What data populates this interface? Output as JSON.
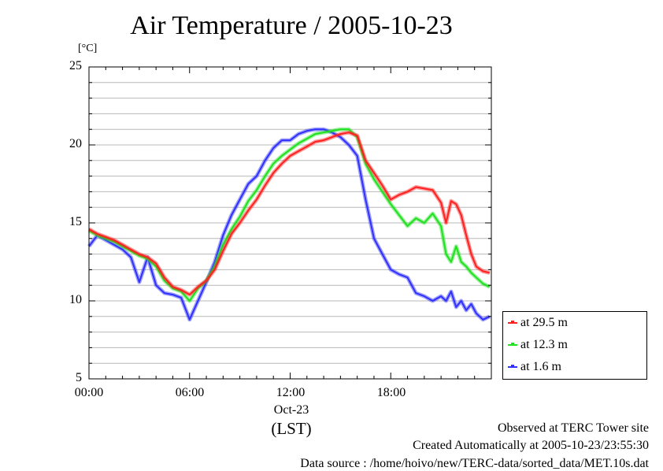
{
  "chart_data": {
    "type": "line",
    "title": "Air Temperature / 2005-10-23",
    "ylabel": "[°C]",
    "xlabel": "(LST)",
    "x_date_label": "Oct-23",
    "ylim": [
      5,
      25
    ],
    "yticks": [
      "25",
      "20",
      "15",
      "10",
      "5"
    ],
    "xlim": [
      0,
      24
    ],
    "xticks": [
      "00:00",
      "06:00",
      "12:00",
      "18:00"
    ],
    "grid": true,
    "legend_position": "bottom-right-outside",
    "series": [
      {
        "name": "at 29.5 m",
        "color": "#ff2020",
        "x": [
          0,
          0.5,
          1,
          1.5,
          2,
          2.5,
          3,
          3.5,
          4,
          4.5,
          5,
          5.5,
          6,
          6.5,
          7,
          7.5,
          8,
          8.5,
          9,
          9.5,
          10,
          10.5,
          11,
          11.5,
          12,
          12.5,
          13,
          13.5,
          14,
          14.5,
          15,
          15.5,
          16,
          16.5,
          17,
          17.5,
          18,
          18.5,
          19,
          19.5,
          20,
          20.5,
          21,
          21.3,
          21.6,
          21.9,
          22.2,
          22.5,
          22.8,
          23.1,
          23.5,
          23.9
        ],
        "y": [
          14.6,
          14.3,
          14.1,
          13.9,
          13.6,
          13.3,
          13.0,
          12.8,
          12.4,
          11.5,
          10.9,
          10.7,
          10.4,
          10.9,
          11.3,
          12.0,
          13.2,
          14.3,
          15.0,
          15.8,
          16.5,
          17.4,
          18.2,
          18.8,
          19.3,
          19.6,
          19.9,
          20.2,
          20.3,
          20.5,
          20.7,
          20.8,
          20.6,
          19.0,
          18.2,
          17.4,
          16.5,
          16.8,
          17.0,
          17.3,
          17.2,
          17.1,
          16.3,
          15.0,
          16.4,
          16.2,
          15.5,
          14.2,
          13.0,
          12.2,
          11.9,
          11.8
        ]
      },
      {
        "name": "at 12.3 m",
        "color": "#20e020",
        "x": [
          0,
          0.5,
          1,
          1.5,
          2,
          2.5,
          3,
          3.5,
          4,
          4.5,
          5,
          5.5,
          6,
          6.5,
          7,
          7.5,
          8,
          8.5,
          9,
          9.5,
          10,
          10.5,
          11,
          11.5,
          12,
          12.5,
          13,
          13.5,
          14,
          14.5,
          15,
          15.5,
          16,
          16.5,
          17,
          17.5,
          18,
          18.5,
          19,
          19.5,
          20,
          20.5,
          21,
          21.3,
          21.6,
          21.9,
          22.2,
          22.5,
          22.8,
          23.1,
          23.5,
          23.9
        ],
        "y": [
          14.5,
          14.2,
          14.0,
          13.8,
          13.5,
          13.2,
          12.9,
          12.7,
          12.2,
          11.3,
          10.8,
          10.6,
          10.0,
          10.8,
          11.3,
          12.2,
          13.6,
          14.6,
          15.4,
          16.4,
          17.1,
          18.0,
          18.8,
          19.3,
          19.7,
          20.1,
          20.4,
          20.7,
          20.8,
          20.9,
          21.0,
          21.0,
          20.5,
          18.8,
          17.8,
          17.0,
          16.2,
          15.5,
          14.8,
          15.3,
          15.0,
          15.6,
          14.8,
          13.0,
          12.5,
          13.5,
          12.5,
          12.2,
          11.8,
          11.5,
          11.1,
          10.9
        ]
      },
      {
        "name": "at 1.6 m",
        "color": "#3030ff",
        "x": [
          0,
          0.5,
          1,
          1.5,
          2,
          2.5,
          3,
          3.5,
          4,
          4.5,
          5,
          5.5,
          6,
          6.5,
          7,
          7.5,
          8,
          8.5,
          9,
          9.5,
          10,
          10.5,
          11,
          11.5,
          12,
          12.5,
          13,
          13.5,
          14,
          14.5,
          15,
          15.5,
          16,
          16.5,
          17,
          17.5,
          18,
          18.5,
          19,
          19.5,
          20,
          20.5,
          21,
          21.3,
          21.6,
          21.9,
          22.2,
          22.5,
          22.8,
          23.1,
          23.5,
          23.9
        ],
        "y": [
          13.5,
          14.2,
          13.9,
          13.6,
          13.3,
          12.8,
          11.2,
          12.8,
          11.0,
          10.5,
          10.4,
          10.2,
          8.8,
          10.0,
          11.2,
          12.5,
          14.2,
          15.5,
          16.5,
          17.5,
          18.0,
          19.0,
          19.8,
          20.3,
          20.3,
          20.7,
          20.9,
          21.0,
          21.0,
          20.8,
          20.5,
          20.0,
          19.3,
          16.5,
          14.0,
          13.0,
          12.0,
          11.7,
          11.5,
          10.5,
          10.3,
          10.0,
          10.3,
          10.0,
          10.6,
          9.6,
          10.0,
          9.4,
          9.8,
          9.2,
          8.8,
          9.0
        ]
      }
    ]
  },
  "footer": {
    "line1": "Observed at TERC Tower site",
    "line2": "Created Automatically at 2005-10-23/23:55:30",
    "line3": "Data source : /home/hoivo/new/TERC-data/sorted_data/MET.10s.dat"
  }
}
